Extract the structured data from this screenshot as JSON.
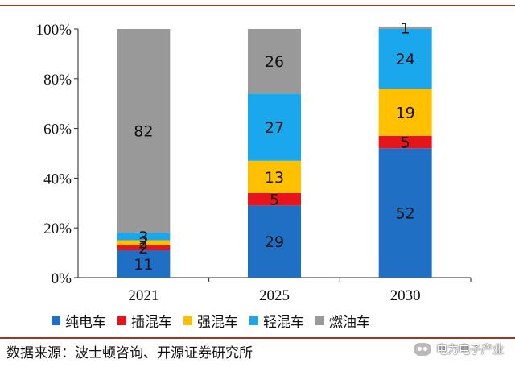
{
  "chart_data": {
    "type": "bar",
    "stacked": true,
    "categories": [
      "2021",
      "2025",
      "2030"
    ],
    "series": [
      {
        "name": "纯电车",
        "color": "#1f6fc5",
        "values": [
          11,
          29,
          52
        ]
      },
      {
        "name": "插混车",
        "color": "#e8141c",
        "values": [
          2,
          5,
          5
        ]
      },
      {
        "name": "强混车",
        "color": "#ffc000",
        "values": [
          2,
          13,
          19
        ]
      },
      {
        "name": "轻混车",
        "color": "#1aa7ec",
        "values": [
          3,
          27,
          24
        ]
      },
      {
        "name": "燃油车",
        "color": "#999999",
        "values": [
          82,
          26,
          1
        ]
      }
    ],
    "ylim": [
      0,
      100
    ],
    "yticks": [
      "0%",
      "20%",
      "40%",
      "60%",
      "80%",
      "100%"
    ],
    "legend_position": "bottom"
  },
  "source_text": "数据来源：波士顿咨询、开源证券研究所",
  "watermark": "电力电子产业"
}
